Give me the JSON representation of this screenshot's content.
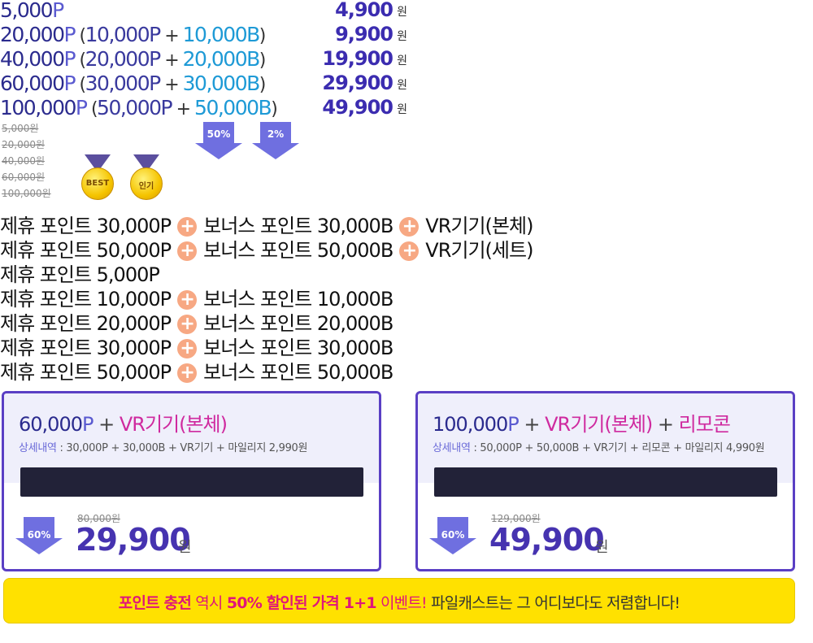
{
  "price_rows": [
    {
      "points": "5,000",
      "unit": "P",
      "base": "",
      "bonus": "",
      "price": "4,900",
      "won": "원"
    },
    {
      "points": "20,000",
      "unit": "P",
      "base": "10,000P",
      "bonus": "10,000B",
      "price": "9,900",
      "won": "원"
    },
    {
      "points": "40,000",
      "unit": "P",
      "base": "20,000P",
      "bonus": "20,000B",
      "price": "19,900",
      "won": "원"
    },
    {
      "points": "60,000",
      "unit": "P",
      "base": "30,000P",
      "bonus": "30,000B",
      "price": "29,900",
      "won": "원"
    },
    {
      "points": "100,000",
      "unit": "P",
      "base": "50,000P",
      "bonus": "50,000B",
      "price": "49,900",
      "won": "원"
    }
  ],
  "plus_sign": "+",
  "strike_prices": [
    "5,000원",
    "20,000원",
    "40,000원",
    "60,000원",
    "100,000원"
  ],
  "badges": {
    "discount_50": "50%",
    "discount_2": "2%"
  },
  "medals": {
    "best": "BEST",
    "popular": "인기"
  },
  "combos": [
    {
      "a": "제휴 포인트 30,000P",
      "b": "보너스 포인트 30,000B",
      "c": "VR기기(본체)"
    },
    {
      "a": "제휴 포인트 50,000P",
      "b": "보너스 포인트 50,000B",
      "c": "VR기기(세트)"
    },
    {
      "a": "제휴 포인트 5,000P",
      "b": "",
      "c": ""
    },
    {
      "a": "제휴 포인트 10,000P",
      "b": "보너스 포인트 10,000B",
      "c": ""
    },
    {
      "a": "제휴 포인트 20,000P",
      "b": "보너스 포인트 20,000B",
      "c": ""
    },
    {
      "a": "제휴 포인트 30,000P",
      "b": "보너스 포인트 30,000B",
      "c": ""
    },
    {
      "a": "제휴 포인트 50,000P",
      "b": "보너스 포인트 50,000B",
      "c": ""
    }
  ],
  "card1": {
    "amount": "60,000",
    "unit": "P",
    "plus": "+",
    "item": "VR기기(본체)",
    "detail_label": "상세내역",
    "detail": " : 30,000P + 30,000B + VR기기 + 마일리지 2,990원",
    "badge": "60%",
    "old_price": "80,000원",
    "price": "29,900",
    "won": "원"
  },
  "card2": {
    "amount": "100,000",
    "unit": "P",
    "plus": "+",
    "item": "VR기기(본체)",
    "plus2": "+",
    "extra": "리모콘",
    "detail_label": "상세내역",
    "detail": " : 50,000P + 50,000B + VR기기 + 리모콘 + 마일리지 4,990원",
    "badge": "60%",
    "old_price": "129,000원",
    "price": "49,900",
    "won": "원"
  },
  "banner": {
    "part1": "포인트 충전",
    "part2": " 역시 ",
    "part3": "50% 할인된 가격 1+1",
    "part4": " 이벤트!",
    "part5": " 파일캐스트는 그 어디보다도 저렴합니다!"
  },
  "colors": {
    "accent": "#5a3fc4",
    "pink": "#cf2a9f",
    "banner_bg": "#ffe100",
    "plus_circle": "#f7a883"
  }
}
